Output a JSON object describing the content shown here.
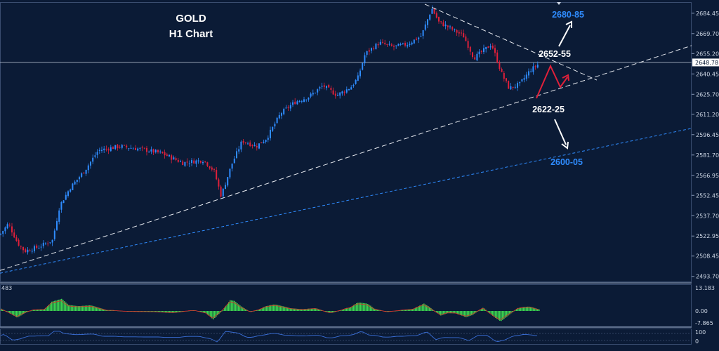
{
  "title": {
    "line1": "GOLD",
    "line2": "H1 Chart"
  },
  "price_axis": {
    "ticks": [
      "2684.45",
      "2669.70",
      "2655.20",
      "2640.45",
      "2625.70",
      "2611.20",
      "2596.45",
      "2581.70",
      "2566.95",
      "2552.45",
      "2537.70",
      "2522.95",
      "2508.45",
      "2493.70"
    ],
    "current_price_label": "2648.78"
  },
  "levels": {
    "resistance_top": "2680-85",
    "resistance": "2652-55",
    "support": "2622-25",
    "support_bottom": "2600-05"
  },
  "macd_axis": {
    "top": "13.183",
    "zero": "0.00",
    "bottom": "-7.865",
    "left_label": "483"
  },
  "rsi_axis": {
    "top": "100",
    "bottom": "0"
  },
  "colors": {
    "background": "#0b1b36",
    "bull_candle": "#2f8cff",
    "bear_candle": "#e0203a",
    "histogram": "#3bd24f",
    "signal_line": "#e02a2a",
    "rsi_line": "#3a6fd8",
    "blue_label": "#2f8cff"
  },
  "chart_data": {
    "type": "candlestick",
    "title": "GOLD H1 Chart",
    "ylim": [
      2490,
      2692
    ],
    "current_price": 2648.78,
    "close_path_anchors": [
      [
        0,
        2524
      ],
      [
        12,
        2532
      ],
      [
        25,
        2518
      ],
      [
        35,
        2512
      ],
      [
        55,
        2515
      ],
      [
        75,
        2520
      ],
      [
        85,
        2545
      ],
      [
        100,
        2558
      ],
      [
        120,
        2570
      ],
      [
        140,
        2585
      ],
      [
        170,
        2588
      ],
      [
        200,
        2586
      ],
      [
        230,
        2583
      ],
      [
        260,
        2576
      ],
      [
        290,
        2578
      ],
      [
        305,
        2570
      ],
      [
        315,
        2552
      ],
      [
        330,
        2575
      ],
      [
        345,
        2592
      ],
      [
        365,
        2588
      ],
      [
        380,
        2594
      ],
      [
        400,
        2612
      ],
      [
        420,
        2620
      ],
      [
        440,
        2624
      ],
      [
        460,
        2632
      ],
      [
        480,
        2625
      ],
      [
        500,
        2631
      ],
      [
        510,
        2638
      ],
      [
        520,
        2655
      ],
      [
        540,
        2663
      ],
      [
        560,
        2660
      ],
      [
        580,
        2662
      ],
      [
        600,
        2668
      ],
      [
        615,
        2688
      ],
      [
        625,
        2678
      ],
      [
        640,
        2674
      ],
      [
        660,
        2668
      ],
      [
        675,
        2652
      ],
      [
        690,
        2658
      ],
      [
        700,
        2662
      ],
      [
        715,
        2640
      ],
      [
        725,
        2630
      ],
      [
        740,
        2633
      ],
      [
        755,
        2643
      ],
      [
        768,
        2648
      ]
    ],
    "trendlines": [
      {
        "style": "dashed",
        "color": "white",
        "points": [
          [
            605,
            2691
          ],
          [
            850,
            2636
          ]
        ]
      },
      {
        "style": "dashed",
        "color": "white",
        "points": [
          [
            0,
            2498
          ],
          [
            985,
            2661
          ]
        ]
      },
      {
        "style": "dashed",
        "color": "blue",
        "points": [
          [
            0,
            2496
          ],
          [
            985,
            2601
          ]
        ]
      }
    ],
    "macd": {
      "zero": 0,
      "max": 13.183,
      "min": -7.865
    },
    "rsi": {
      "max": 100,
      "min": 0
    }
  }
}
